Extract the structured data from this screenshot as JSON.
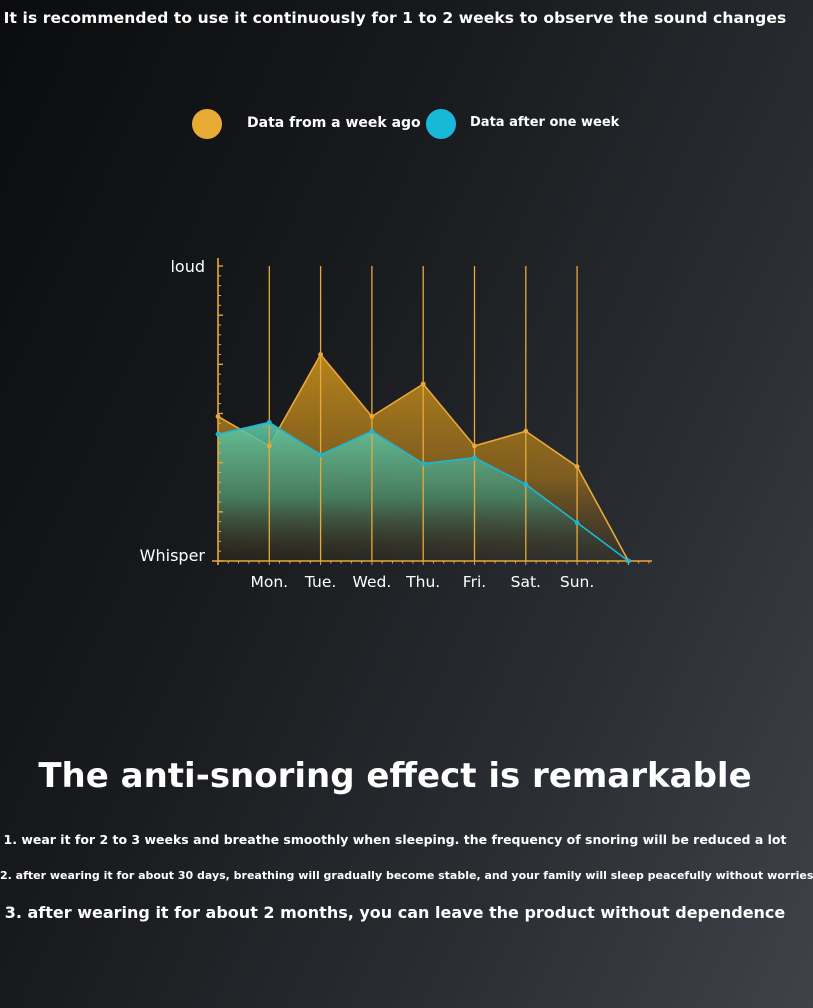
{
  "header": {
    "note": "It is recommended to use it continuously for 1 to 2 weeks to observe the sound changes"
  },
  "chart_data": {
    "type": "area",
    "categories": [
      "",
      "Mon.",
      "Tue.",
      "Wed.",
      "Thu.",
      "Fri.",
      "Sat.",
      "Sun.",
      ""
    ],
    "ylabel_top": "loud",
    "ylabel_bottom": "Whisper",
    "ylim": [
      0,
      100
    ],
    "grid": true,
    "legend_position": "top",
    "series": [
      {
        "name": "Data from a week ago",
        "color": "#e8a93a",
        "values": [
          49,
          39,
          70,
          49,
          60,
          39,
          44,
          32,
          0
        ]
      },
      {
        "name": "Data after one week",
        "color": "#1ab7d6",
        "values": [
          43,
          47,
          36,
          44,
          33,
          35,
          26,
          13,
          0
        ]
      }
    ]
  },
  "main": {
    "headline": "The anti-snoring effect is remarkable",
    "notes": [
      "1. wear it for 2 to 3 weeks and breathe smoothly when sleeping. the frequency of snoring will be reduced a lot",
      "2. after wearing it for about 30 days, breathing will gradually become stable, and your family will sleep peacefully without worries",
      "3. after wearing it for about 2 months, you can leave the product without dependence"
    ]
  }
}
